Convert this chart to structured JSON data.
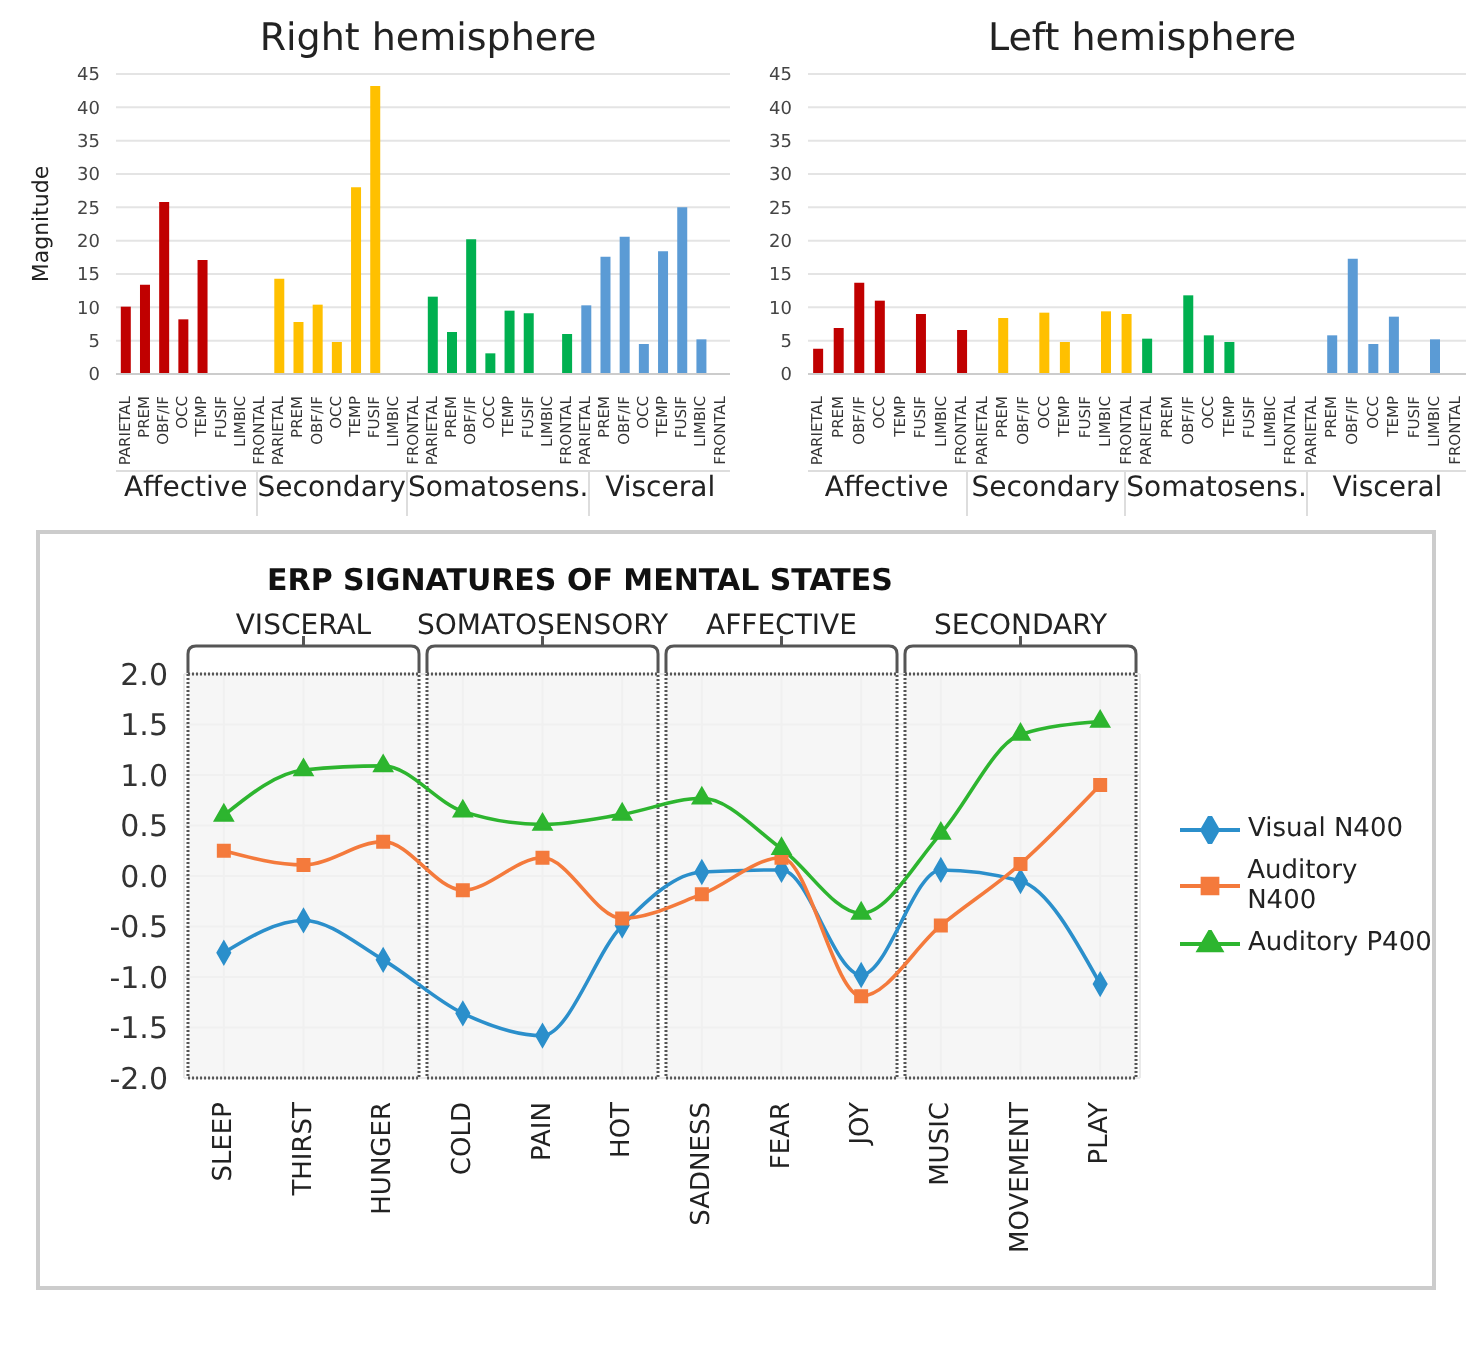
{
  "chart_data": [
    {
      "type": "bar",
      "title": "Right hemisphere",
      "ylabel": "Magnitude",
      "categories": [
        "PARIETAL",
        "PREM",
        "OBF/IF",
        "OCC",
        "TEMP",
        "FUSIF",
        "LIMBIC",
        "FRONTAL",
        "PARIETAL",
        "PREM",
        "OBF/IF",
        "OCC",
        "TEMP",
        "FUSIF",
        "LIMBIC",
        "FRONTAL",
        "PARIETAL",
        "PREM",
        "OBF/IF",
        "OCC",
        "TEMP",
        "FUSIF",
        "LIMBIC",
        "FRONTAL",
        "PARIETAL",
        "PREM",
        "OBF/IF",
        "OCC",
        "TEMP",
        "FUSIF",
        "LIMBIC",
        "FRONTAL"
      ],
      "values": [
        10.1,
        13.4,
        25.8,
        8.2,
        17.1,
        null,
        null,
        null,
        14.3,
        7.8,
        10.4,
        4.8,
        28,
        43.2,
        null,
        null,
        11.6,
        6.3,
        20.2,
        3.1,
        9.5,
        9.1,
        null,
        6,
        10.3,
        17.6,
        20.6,
        4.5,
        18.4,
        25,
        5.2,
        null
      ],
      "colors": [
        "#c00000",
        "#c00000",
        "#c00000",
        "#c00000",
        "#c00000",
        "#c00000",
        "#c00000",
        "#c00000",
        "#ffc000",
        "#ffc000",
        "#ffc000",
        "#ffc000",
        "#ffc000",
        "#ffc000",
        "#ffc000",
        "#ffc000",
        "#00b050",
        "#00b050",
        "#00b050",
        "#00b050",
        "#00b050",
        "#00b050",
        "#00b050",
        "#00b050",
        "#5b9bd5",
        "#5b9bd5",
        "#5b9bd5",
        "#5b9bd5",
        "#5b9bd5",
        "#5b9bd5",
        "#5b9bd5",
        "#5b9bd5"
      ],
      "ylim": [
        0,
        45
      ],
      "yticks": [
        0,
        5,
        10,
        15,
        20,
        25,
        30,
        35,
        40,
        45
      ],
      "grid": "y",
      "annotations": [
        "Affective",
        "Secondary",
        "Somatosens.",
        "Visceral"
      ]
    },
    {
      "type": "bar",
      "title": "Left hemisphere",
      "categories": [
        "PARIETAL",
        "PREM",
        "OBF/IF",
        "OCC",
        "TEMP",
        "FUSIF",
        "LIMBIC",
        "FRONTAL",
        "PARIETAL",
        "PREM",
        "OBF/IF",
        "OCC",
        "TEMP",
        "FUSIF",
        "LIMBIC",
        "FRONTAL",
        "PARIETAL",
        "PREM",
        "OBF/IF",
        "OCC",
        "TEMP",
        "FUSIF",
        "LIMBIC",
        "FRONTAL",
        "PARIETAL",
        "PREM",
        "OBF/IF",
        "OCC",
        "TEMP",
        "FUSIF",
        "LIMBIC",
        "FRONTAL"
      ],
      "values": [
        3.8,
        6.9,
        13.7,
        11,
        null,
        9,
        null,
        6.6,
        null,
        8.4,
        null,
        9.2,
        4.8,
        null,
        9.4,
        9,
        5.3,
        null,
        11.8,
        5.8,
        4.8,
        null,
        null,
        null,
        null,
        5.8,
        17.3,
        4.5,
        8.6,
        null,
        5.2,
        null
      ],
      "colors": [
        "#c00000",
        "#c00000",
        "#c00000",
        "#c00000",
        "#c00000",
        "#c00000",
        "#c00000",
        "#c00000",
        "#ffc000",
        "#ffc000",
        "#ffc000",
        "#ffc000",
        "#ffc000",
        "#ffc000",
        "#ffc000",
        "#ffc000",
        "#00b050",
        "#00b050",
        "#00b050",
        "#00b050",
        "#00b050",
        "#00b050",
        "#00b050",
        "#00b050",
        "#5b9bd5",
        "#5b9bd5",
        "#5b9bd5",
        "#5b9bd5",
        "#5b9bd5",
        "#5b9bd5",
        "#5b9bd5",
        "#5b9bd5"
      ],
      "ylim": [
        0,
        45
      ],
      "yticks": [
        0,
        5,
        10,
        15,
        20,
        25,
        30,
        35,
        40,
        45
      ],
      "grid": "y",
      "annotations": [
        "Affective",
        "Secondary",
        "Somatosens.",
        "Visceral"
      ]
    },
    {
      "type": "line",
      "title": "ERP SIGNATURES OF MENTAL STATES",
      "categories": [
        "SLEEP",
        "THIRST",
        "HUNGER",
        "COLD",
        "PAIN",
        "HOT",
        "SADNESS",
        "FEAR",
        "JOY",
        "MUSIC",
        "MOVEMENT",
        "PLAY"
      ],
      "series": [
        {
          "name": "Visual N400",
          "color": "#2b8fcb",
          "marker": "diamond",
          "values": [
            -0.76,
            -0.44,
            -0.83,
            -1.36,
            -1.58,
            -0.49,
            0.04,
            0.06,
            -0.98,
            0.06,
            -0.05,
            -1.07
          ]
        },
        {
          "name": "Auditory N400",
          "color": "#f47a3c",
          "marker": "square",
          "values": [
            0.25,
            0.11,
            0.34,
            -0.14,
            0.18,
            -0.42,
            -0.18,
            0.18,
            -1.19,
            -0.49,
            0.12,
            0.9
          ]
        },
        {
          "name": "Auditory P400",
          "color": "#2db52f",
          "marker": "triangle",
          "values": [
            0.6,
            1.05,
            1.09,
            0.64,
            0.51,
            0.61,
            0.77,
            0.27,
            -0.37,
            0.42,
            1.4,
            1.53
          ]
        }
      ],
      "ylim": [
        -2,
        2
      ],
      "yticks": [
        {
          "value": -2,
          "label": "-2.0"
        },
        {
          "value": -1.5,
          "label": "-1.5"
        },
        {
          "value": -1,
          "label": "-1.0"
        },
        {
          "value": -0.5,
          "label": "-0.5"
        },
        {
          "value": 0,
          "label": "0.0"
        },
        {
          "value": 0.5,
          "label": "0.5"
        },
        {
          "value": 1,
          "label": "1.0"
        },
        {
          "value": 1.5,
          "label": "1.5"
        },
        {
          "value": 2,
          "label": "2.0"
        }
      ],
      "grid": true,
      "legend": "right",
      "line_style": "solid",
      "bands": [
        {
          "axis": "x",
          "from": "SLEEP",
          "to": "HUNGER",
          "label": "VISCERAL"
        },
        {
          "axis": "x",
          "from": "COLD",
          "to": "HOT",
          "label": "SOMATOSENSORY"
        },
        {
          "axis": "x",
          "from": "SADNESS",
          "to": "JOY",
          "label": "AFFECTIVE"
        },
        {
          "axis": "x",
          "from": "MUSIC",
          "to": "PLAY",
          "label": "SECONDARY"
        }
      ]
    }
  ]
}
